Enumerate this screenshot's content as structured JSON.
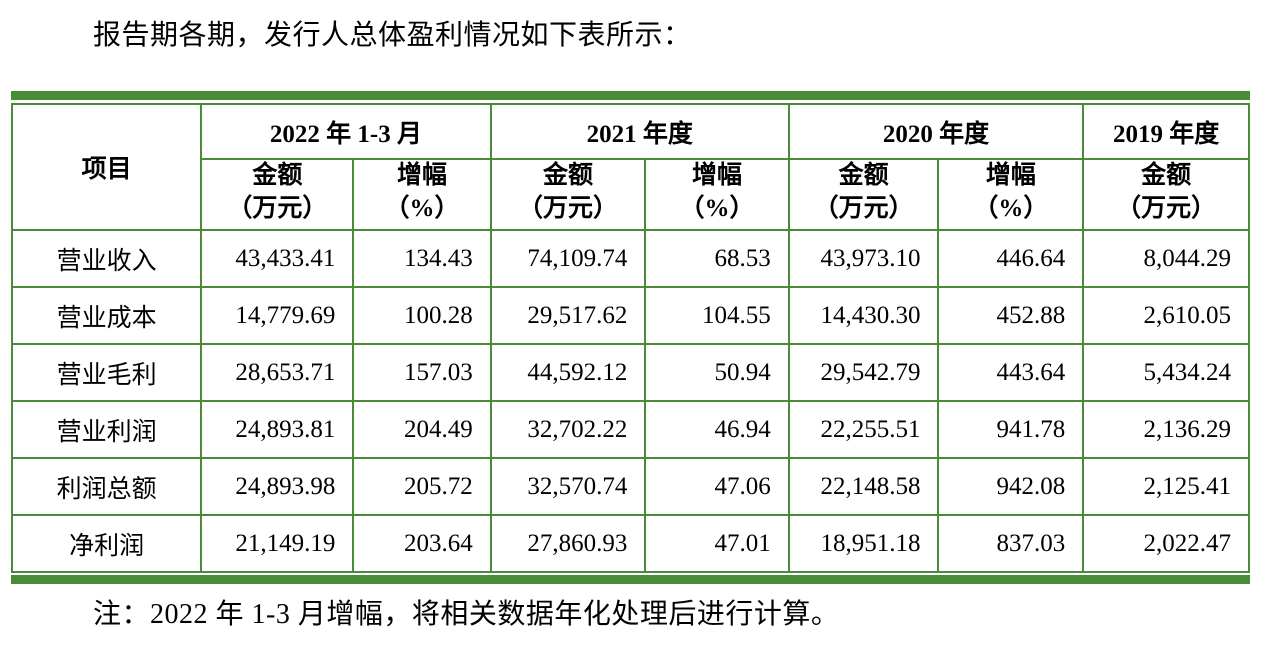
{
  "page": {
    "intro": "报告期各期，发行人总体盈利情况如下表所示：",
    "note": "注：2022 年 1-3 月增幅，将相关数据年化处理后进行计算。"
  },
  "colors": {
    "table_green": "#4a8b3a"
  },
  "table": {
    "item_header": "项目",
    "periods": [
      "2022 年 1-3 月",
      "2021 年度",
      "2020 年度",
      "2019 年度"
    ],
    "subheaders": [
      "金额\n（万元）",
      "增幅\n（%）",
      "金额\n（万元）",
      "增幅\n（%）",
      "金额\n（万元）",
      "增幅\n（%）",
      "金额\n（万元）"
    ],
    "rows": [
      {
        "item": "营业收入",
        "values": [
          "43,433.41",
          "134.43",
          "74,109.74",
          "68.53",
          "43,973.10",
          "446.64",
          "8,044.29"
        ]
      },
      {
        "item": "营业成本",
        "values": [
          "14,779.69",
          "100.28",
          "29,517.62",
          "104.55",
          "14,430.30",
          "452.88",
          "2,610.05"
        ]
      },
      {
        "item": "营业毛利",
        "values": [
          "28,653.71",
          "157.03",
          "44,592.12",
          "50.94",
          "29,542.79",
          "443.64",
          "5,434.24"
        ]
      },
      {
        "item": "营业利润",
        "values": [
          "24,893.81",
          "204.49",
          "32,702.22",
          "46.94",
          "22,255.51",
          "941.78",
          "2,136.29"
        ]
      },
      {
        "item": "利润总额",
        "values": [
          "24,893.98",
          "205.72",
          "32,570.74",
          "47.06",
          "22,148.58",
          "942.08",
          "2,125.41"
        ]
      },
      {
        "item": "净利润",
        "values": [
          "21,149.19",
          "203.64",
          "27,860.93",
          "47.01",
          "18,951.18",
          "837.03",
          "2,022.47"
        ]
      }
    ]
  }
}
